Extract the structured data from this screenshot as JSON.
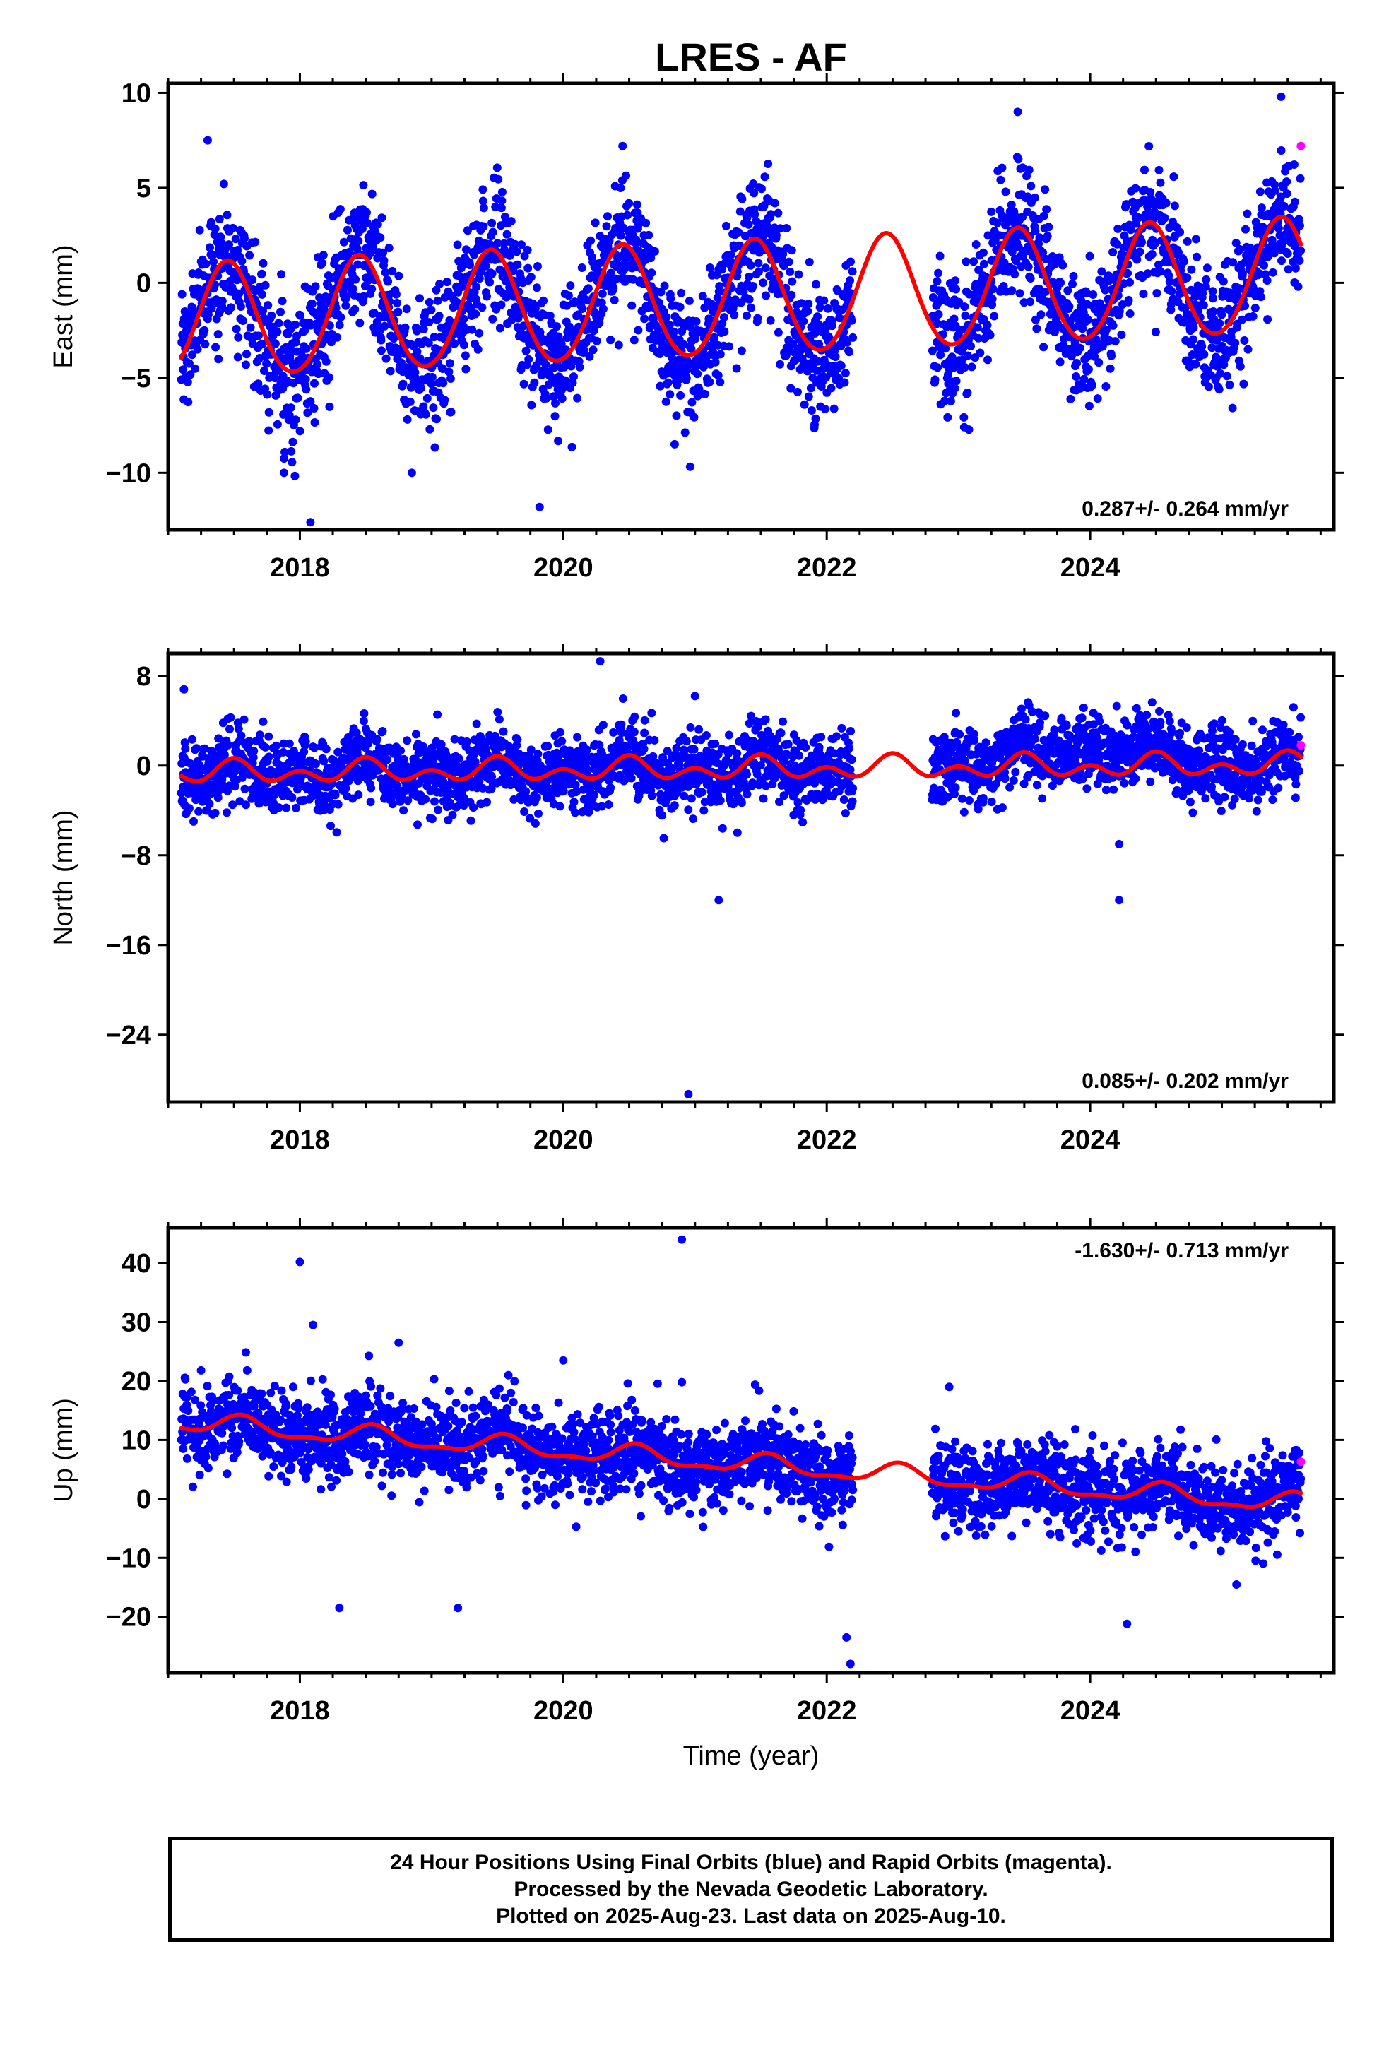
{
  "chart_data": [
    {
      "type": "scatter",
      "panel": "east",
      "title": "LRES - AF",
      "ylabel": "East (mm)",
      "xlabel": "",
      "xlim": [
        2017.0,
        2025.85
      ],
      "ylim": [
        -13.0,
        10.5
      ],
      "yticks": [
        10,
        5,
        0,
        -5,
        -10
      ],
      "ytick_labels": [
        "10",
        "5",
        "0",
        "−5",
        "−10"
      ],
      "xticks": [
        2018,
        2020,
        2022,
        2024
      ],
      "xtick_labels": [
        "2018",
        "2020",
        "2022",
        "2024"
      ],
      "rate_label": "0.287+/- 0.264 mm/yr",
      "rate_position": "bottom-right",
      "grid": false,
      "data_range": [
        2017.1,
        2025.6
      ],
      "gaps": [
        [
          2022.2,
          2022.8
        ]
      ],
      "model": {
        "offset": -0.9,
        "trend": 0.287,
        "annual_amp": 3.0,
        "annual_peak": 2017.45,
        "semi_amp": 0.2
      },
      "outliers": [
        {
          "x": 2017.3,
          "y": 7.5
        },
        {
          "x": 2017.88,
          "y": -10.0
        },
        {
          "x": 2018.08,
          "y": -12.6
        },
        {
          "x": 2018.85,
          "y": -10.0
        },
        {
          "x": 2019.82,
          "y": -11.8
        },
        {
          "x": 2020.45,
          "y": 7.2
        },
        {
          "x": 2023.45,
          "y": 9.0
        },
        {
          "x": 2025.45,
          "y": 9.8
        }
      ],
      "rapid_points": [
        {
          "x": 2025.6,
          "y": 7.2
        }
      ],
      "series": [
        {
          "name": "Final Orbits",
          "color": "#0000ff"
        },
        {
          "name": "Rapid Orbits",
          "color": "#ff00ff"
        },
        {
          "name": "Model",
          "color": "#ff0000"
        }
      ]
    },
    {
      "type": "scatter",
      "panel": "north",
      "title": "",
      "ylabel": "North (mm)",
      "xlabel": "",
      "xlim": [
        2017.0,
        2025.85
      ],
      "ylim": [
        -30.0,
        10.0
      ],
      "yticks": [
        8,
        0,
        -8,
        -16,
        -24
      ],
      "ytick_labels": [
        "8",
        "0",
        "−8",
        "−16",
        "−24"
      ],
      "xticks": [
        2018,
        2020,
        2022,
        2024
      ],
      "xtick_labels": [
        "2018",
        "2020",
        "2022",
        "2024"
      ],
      "rate_label": "0.085+/- 0.202 mm/yr",
      "rate_position": "bottom-right",
      "grid": false,
      "data_range": [
        2017.1,
        2025.6
      ],
      "gaps": [
        [
          2022.2,
          2022.8
        ]
      ],
      "model": {
        "offset": -0.3,
        "trend": 0.085,
        "annual_amp": 0.6,
        "annual_peak": 2017.5,
        "semi_amp": 0.7
      },
      "outliers": [
        {
          "x": 2017.12,
          "y": 6.8
        },
        {
          "x": 2020.28,
          "y": 9.3
        },
        {
          "x": 2021.0,
          "y": 6.2
        },
        {
          "x": 2021.18,
          "y": -12.0
        },
        {
          "x": 2020.95,
          "y": -29.3
        },
        {
          "x": 2024.22,
          "y": -12.0
        },
        {
          "x": 2024.22,
          "y": -7.0
        }
      ],
      "rapid_points": [
        {
          "x": 2025.6,
          "y": 1.8
        }
      ],
      "series": [
        {
          "name": "Final Orbits",
          "color": "#0000ff"
        },
        {
          "name": "Rapid Orbits",
          "color": "#ff00ff"
        },
        {
          "name": "Model",
          "color": "#ff0000"
        }
      ]
    },
    {
      "type": "scatter",
      "panel": "up",
      "title": "",
      "ylabel": "Up (mm)",
      "xlabel": "Time (year)",
      "xlim": [
        2017.0,
        2025.85
      ],
      "ylim": [
        -29.5,
        46.0
      ],
      "yticks": [
        40,
        30,
        20,
        10,
        0,
        -10,
        -20
      ],
      "ytick_labels": [
        "40",
        "30",
        "20",
        "10",
        "0",
        "−10",
        "−20"
      ],
      "xticks": [
        2018,
        2020,
        2022,
        2024
      ],
      "xtick_labels": [
        "2018",
        "2020",
        "2022",
        "2024"
      ],
      "rate_label": "-1.630+/- 0.713 mm/yr",
      "rate_position": "top-right",
      "grid": false,
      "data_range": [
        2017.1,
        2025.6
      ],
      "gaps": [
        [
          2022.2,
          2022.8
        ]
      ],
      "model": {
        "offset": 6.0,
        "trend": -1.63,
        "annual_amp": 1.5,
        "annual_peak": 2017.55,
        "semi_amp": 0.6
      },
      "outliers": [
        {
          "x": 2017.25,
          "y": 21.8
        },
        {
          "x": 2017.6,
          "y": 21.8
        },
        {
          "x": 2018.0,
          "y": 40.2
        },
        {
          "x": 2018.1,
          "y": 29.5
        },
        {
          "x": 2018.3,
          "y": -18.5
        },
        {
          "x": 2018.75,
          "y": 26.5
        },
        {
          "x": 2019.2,
          "y": -18.5
        },
        {
          "x": 2020.0,
          "y": 23.5
        },
        {
          "x": 2020.9,
          "y": 44.0
        },
        {
          "x": 2020.9,
          "y": 19.8
        },
        {
          "x": 2022.15,
          "y": -23.5
        },
        {
          "x": 2022.18,
          "y": -28.0
        },
        {
          "x": 2022.93,
          "y": 19.0
        },
        {
          "x": 2024.28,
          "y": -21.2
        }
      ],
      "rapid_points": [
        {
          "x": 2025.6,
          "y": 6.3
        }
      ],
      "series": [
        {
          "name": "Final Orbits",
          "color": "#0000ff"
        },
        {
          "name": "Rapid Orbits",
          "color": "#ff00ff"
        },
        {
          "name": "Model",
          "color": "#ff0000"
        }
      ]
    }
  ],
  "footer": {
    "line1": "24 Hour Positions Using Final Orbits (blue) and Rapid Orbits (magenta).",
    "line2": "Processed by the Nevada Geodetic Laboratory.",
    "line3": "Plotted on 2025-Aug-23. Last data on 2025-Aug-10."
  }
}
